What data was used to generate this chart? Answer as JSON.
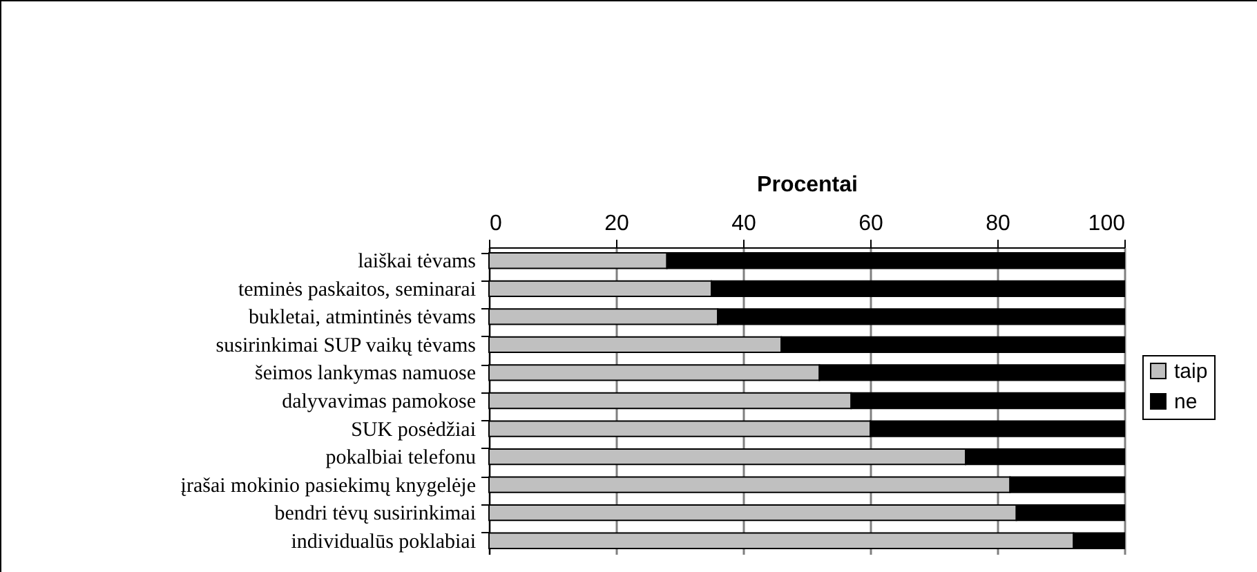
{
  "chart_data": {
    "type": "bar",
    "orientation": "horizontal",
    "stacked": true,
    "xlabel": "Procentai",
    "categories": [
      "laiškai tėvams",
      "teminės paskaitos, seminarai",
      "bukletai, atmintinės tėvams",
      "susirinkimai SUP vaikų tėvams",
      "šeimos lankymas namuose",
      "dalyvavimas pamokose",
      "SUK posėdžiai",
      "pokalbiai telefonu",
      "įrašai mokinio pasiekimų knygelėje",
      "bendri tėvų susirinkimai",
      "individualūs poklabiai"
    ],
    "series": [
      {
        "name": "taip",
        "color": "#c0c0c0",
        "values": [
          28,
          35,
          36,
          46,
          52,
          57,
          60,
          75,
          82,
          83,
          92
        ]
      },
      {
        "name": "ne",
        "color": "#000000",
        "values": [
          72,
          65,
          64,
          54,
          48,
          43,
          40,
          25,
          18,
          17,
          8
        ]
      }
    ],
    "xlim": [
      0,
      100
    ],
    "xticks": [
      0,
      20,
      40,
      60,
      80,
      100
    ],
    "grid": "x",
    "legend": "right"
  }
}
